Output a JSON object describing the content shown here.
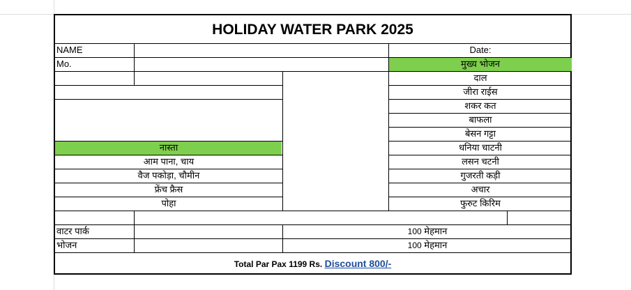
{
  "title": "HOLIDAY WATER PARK 2025",
  "labels": {
    "name": "NAME",
    "mobile": "Mo.",
    "date": "Date:"
  },
  "menu": {
    "main_header": "मुख्य भोजन",
    "main_items": [
      "दाल",
      "जीरा राईस",
      "शकर कत",
      "बाफला",
      "बेसन गट्टा",
      "धनिया चाटनी",
      "लसन चटनी",
      "गुजरती कड़ी",
      "अचार",
      "फुरुट किरिम"
    ],
    "snack_header": "नास्ता",
    "snack_items": [
      "आम पाना, चाय",
      "वैज पकोड़ा, चौमीन",
      "फ्रेंच फ्रैस",
      "पोहा"
    ]
  },
  "charges": [
    {
      "label": "वाटर पार्क",
      "count": "100",
      "unit": "मेहमान"
    },
    {
      "label": "भोजन",
      "count": "100",
      "unit": "मेहमान"
    }
  ],
  "footer": {
    "total": "Total Par Pax 1199 Rs.",
    "discount": "Discount 800/-"
  },
  "colors": {
    "header_fill": "#7fcf4e",
    "discount_text": "#1f4e9a"
  }
}
